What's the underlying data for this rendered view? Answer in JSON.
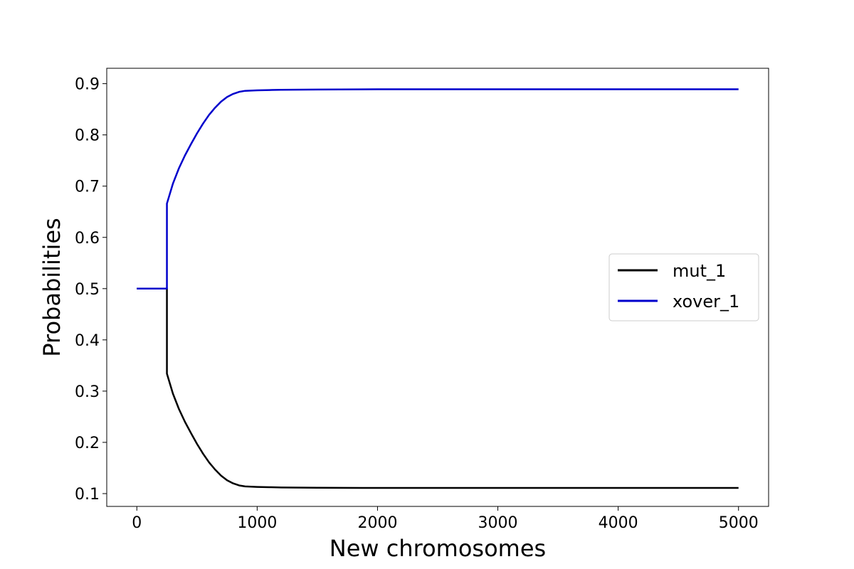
{
  "chart_data": {
    "type": "line",
    "title": "",
    "xlabel": "New chromosomes",
    "ylabel": "Probabilities",
    "xlim": [
      -250,
      5250
    ],
    "ylim": [
      0.075,
      0.93
    ],
    "xticks": [
      0,
      1000,
      2000,
      3000,
      4000,
      5000
    ],
    "yticks": [
      0.1,
      0.2,
      0.3,
      0.4,
      0.5,
      0.6,
      0.7,
      0.8,
      0.9
    ],
    "grid": false,
    "legend_position": "center-right",
    "series": [
      {
        "name": "mut_1",
        "color": "#000000",
        "x": [
          0,
          250,
          250,
          300,
          350,
          400,
          450,
          500,
          550,
          600,
          650,
          700,
          750,
          800,
          850,
          900,
          1000,
          1100,
          1200,
          1500,
          2000,
          3000,
          4000,
          5000
        ],
        "y": [
          0.5,
          0.5,
          0.334,
          0.295,
          0.265,
          0.24,
          0.218,
          0.197,
          0.178,
          0.161,
          0.147,
          0.135,
          0.126,
          0.12,
          0.116,
          0.114,
          0.113,
          0.1125,
          0.112,
          0.1115,
          0.111,
          0.111,
          0.111,
          0.111
        ]
      },
      {
        "name": "xover_1",
        "color": "#0000cc",
        "x": [
          0,
          250,
          250,
          300,
          350,
          400,
          450,
          500,
          550,
          600,
          650,
          700,
          750,
          800,
          850,
          900,
          1000,
          1100,
          1200,
          1500,
          2000,
          3000,
          4000,
          5000
        ],
        "y": [
          0.5,
          0.5,
          0.666,
          0.705,
          0.735,
          0.76,
          0.782,
          0.803,
          0.822,
          0.839,
          0.853,
          0.865,
          0.874,
          0.88,
          0.884,
          0.886,
          0.887,
          0.8875,
          0.888,
          0.8885,
          0.889,
          0.889,
          0.889,
          0.889
        ]
      }
    ]
  }
}
